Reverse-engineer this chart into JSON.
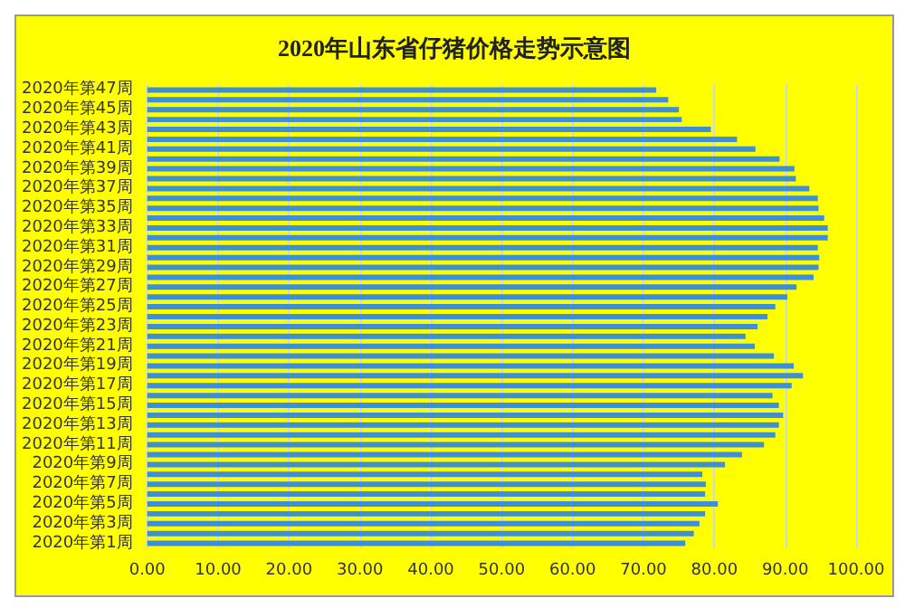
{
  "chart_data": {
    "type": "bar",
    "orientation": "horizontal",
    "title": "2020年山东省仔猪价格走势示意图",
    "categories": [
      "2020年第47周",
      null,
      "2020年第45周",
      null,
      "2020年第43周",
      null,
      "2020年第41周",
      null,
      "2020年第39周",
      null,
      "2020年第37周",
      null,
      "2020年第35周",
      null,
      "2020年第33周",
      null,
      "2020年第31周",
      null,
      "2020年第29周",
      null,
      "2020年第27周",
      null,
      "2020年第25周",
      null,
      "2020年第23周",
      null,
      "2020年第21周",
      null,
      "2020年第19周",
      null,
      "2020年第17周",
      null,
      "2020年第15周",
      null,
      "2020年第13周",
      null,
      "2020年第11周",
      null,
      "2020年第9周",
      null,
      "2020年第7周",
      null,
      "2020年第5周",
      null,
      "2020年第3周",
      null,
      "2020年第1周"
    ],
    "values": [
      71.8,
      73.5,
      75.0,
      75.4,
      79.5,
      83.2,
      85.8,
      89.2,
      91.3,
      91.5,
      93.4,
      94.6,
      94.7,
      95.5,
      96.0,
      96.0,
      94.6,
      94.8,
      94.7,
      94.0,
      91.6,
      90.3,
      88.6,
      87.5,
      86.1,
      84.4,
      85.7,
      88.4,
      91.2,
      92.5,
      90.9,
      88.2,
      89.1,
      89.7,
      89.1,
      88.6,
      87.0,
      83.9,
      81.5,
      78.3,
      78.8,
      78.7,
      80.5,
      78.7,
      77.9,
      77.1,
      75.9
    ],
    "color": "#3d8fd6",
    "xlim": [
      0,
      100
    ],
    "xticks": [
      {
        "value": 0,
        "label": "0.00"
      },
      {
        "value": 10,
        "label": "10.00"
      },
      {
        "value": 20,
        "label": "20.00"
      },
      {
        "value": 30,
        "label": "30.00"
      },
      {
        "value": 40,
        "label": "40.00"
      },
      {
        "value": 50,
        "label": "50.00"
      },
      {
        "value": 60,
        "label": "60.00"
      },
      {
        "value": 70,
        "label": "70.00"
      },
      {
        "value": 80,
        "label": "80.00"
      },
      {
        "value": 90,
        "label": "90.00"
      },
      {
        "value": 100,
        "label": "100.00"
      }
    ],
    "grid": "x"
  }
}
